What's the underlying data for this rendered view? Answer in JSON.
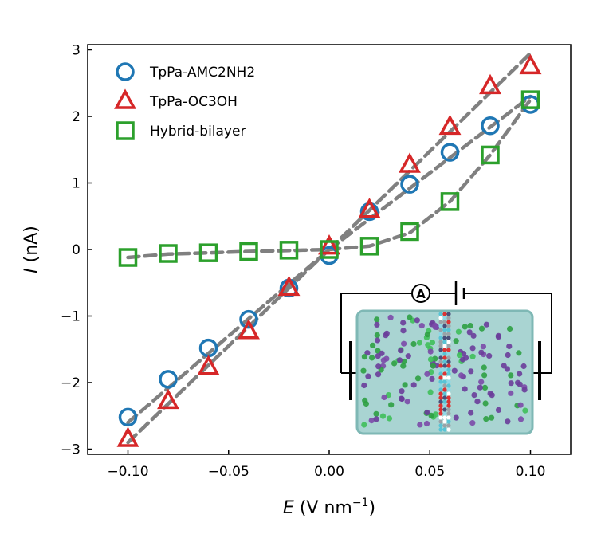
{
  "chart_data": {
    "type": "scatter",
    "xlabel": {
      "symbol": "E",
      "unit_prefix": "(V nm",
      "unit_exp": "−1",
      "unit_suffix": ")"
    },
    "ylabel": {
      "symbol": "I",
      "unit": "(nA)"
    },
    "xlim": [
      -0.12,
      0.12
    ],
    "ylim": [
      -3.05,
      3.05
    ],
    "xticks": [
      -0.1,
      -0.05,
      0.0,
      0.05,
      0.1
    ],
    "xtick_labels": [
      "−0.10",
      "−0.05",
      "0.00",
      "0.05",
      "0.10"
    ],
    "yticks": [
      -3,
      -2,
      -1,
      0,
      1,
      2,
      3
    ],
    "ytick_labels": [
      "−3",
      "−2",
      "−1",
      "0",
      "1",
      "2",
      "3"
    ],
    "grid": false,
    "legend_position": "top-left",
    "series": [
      {
        "name": "TpPa-AMC2NH2",
        "marker": "circle",
        "color": "#1f77b4",
        "x": [
          -0.1,
          -0.08,
          -0.06,
          -0.04,
          -0.02,
          0.0,
          0.02,
          0.04,
          0.06,
          0.08,
          0.1
        ],
        "y": [
          -2.52,
          -1.95,
          -1.48,
          -1.05,
          -0.58,
          -0.09,
          0.57,
          0.98,
          1.46,
          1.86,
          2.18
        ]
      },
      {
        "name": "TpPa-OC3OH",
        "marker": "triangle",
        "color": "#d62728",
        "x": [
          -0.1,
          -0.08,
          -0.06,
          -0.04,
          -0.02,
          0.0,
          0.02,
          0.04,
          0.06,
          0.08,
          0.1
        ],
        "y": [
          -2.85,
          -2.28,
          -1.77,
          -1.23,
          -0.58,
          0.04,
          0.59,
          1.27,
          1.84,
          2.45,
          2.75
        ]
      },
      {
        "name": "Hybrid-bilayer",
        "marker": "square",
        "color": "#2ca02c",
        "x": [
          -0.1,
          -0.08,
          -0.06,
          -0.04,
          -0.02,
          0.0,
          0.02,
          0.04,
          0.06,
          0.08,
          0.1
        ],
        "y": [
          -0.12,
          -0.06,
          -0.05,
          -0.03,
          -0.01,
          0.0,
          0.05,
          0.27,
          0.72,
          1.42,
          2.25
        ]
      }
    ],
    "fit_lines": [
      {
        "x": [
          -0.1,
          0.0
        ],
        "y": [
          -2.6,
          0.0
        ]
      },
      {
        "x": [
          0.0,
          0.1
        ],
        "y": [
          0.0,
          2.3
        ]
      },
      {
        "x": [
          -0.1,
          0.0
        ],
        "y": [
          -2.9,
          0.0
        ]
      },
      {
        "x": [
          0.0,
          0.1
        ],
        "y": [
          0.0,
          2.95
        ]
      },
      {
        "x": [
          -0.1,
          -0.08,
          -0.06,
          -0.04,
          -0.02,
          0.0,
          0.02,
          0.04,
          0.06,
          0.08,
          0.1
        ],
        "y": [
          -0.12,
          -0.07,
          -0.05,
          -0.03,
          -0.015,
          0.0,
          0.05,
          0.25,
          0.72,
          1.42,
          2.25
        ]
      }
    ],
    "inset": {
      "ammeter_label": "A"
    }
  }
}
